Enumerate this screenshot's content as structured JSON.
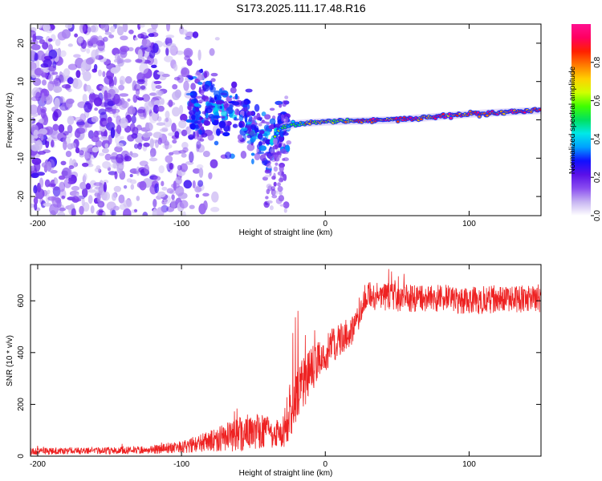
{
  "figure": {
    "title": "S173.2025.111.17.48.R16"
  },
  "chart_data": [
    {
      "type": "heatmap",
      "xlabel": "Height of straight line (km)",
      "ylabel": "Frequency (Hz)",
      "xlim": [
        -205,
        150
      ],
      "ylim": [
        -25,
        25
      ],
      "xticks": [
        -200,
        -100,
        0,
        100
      ],
      "yticks": [
        -20,
        -10,
        0,
        10,
        20
      ],
      "colorbar": {
        "label": "Normalized spectral amplitude",
        "range": [
          0,
          1
        ],
        "ticks": [
          "0.0",
          "0.2",
          "0.4",
          "0.6",
          "0.8"
        ],
        "colors": [
          "#ffffff",
          "#c8b6f2",
          "#8a4df0",
          "#5a10e8",
          "#1010ff",
          "#00a0ff",
          "#00e8e8",
          "#00e060",
          "#40ff00",
          "#d0ff00",
          "#ffd000",
          "#ff7a00",
          "#ff2000",
          "#ff0060",
          "#ff1090"
        ]
      },
      "ridge": {
        "description_points": [
          [
            -80,
            3
          ],
          [
            -70,
            2
          ],
          [
            -60,
            0
          ],
          [
            -50,
            -3
          ],
          [
            -40,
            -5
          ],
          [
            -35,
            -4
          ],
          [
            -30,
            -2
          ],
          [
            -20,
            -1
          ],
          [
            0,
            -0.5
          ],
          [
            50,
            0
          ],
          [
            100,
            1.5
          ],
          [
            150,
            2.5
          ]
        ]
      }
    },
    {
      "type": "line",
      "xlabel": "Height of straight line (km)",
      "ylabel": "SNR (10 * v/v)",
      "xlim": [
        -205,
        150
      ],
      "ylim": [
        0,
        740
      ],
      "xticks": [
        -200,
        -100,
        0,
        100
      ],
      "yticks": [
        0,
        200,
        400,
        600
      ],
      "color": "#ee2222",
      "series": [
        {
          "x": [
            -205,
            -180,
            -150,
            -120,
            -100,
            -90,
            -80,
            -70,
            -60,
            -50,
            -40,
            -30,
            -25,
            -20,
            -15,
            -10,
            -5,
            0,
            10,
            20,
            28,
            40,
            60,
            80,
            100,
            120,
            150
          ],
          "mean": [
            18,
            20,
            22,
            25,
            35,
            45,
            60,
            70,
            85,
            95,
            90,
            80,
            170,
            240,
            280,
            330,
            370,
            400,
            450,
            490,
            620,
            615,
            610,
            610,
            600,
            605,
            610
          ],
          "noise": [
            15,
            15,
            15,
            18,
            25,
            35,
            45,
            60,
            75,
            80,
            70,
            60,
            120,
            120,
            110,
            100,
            90,
            80,
            70,
            60,
            60,
            60,
            60,
            60,
            60,
            60,
            60
          ]
        }
      ]
    }
  ]
}
